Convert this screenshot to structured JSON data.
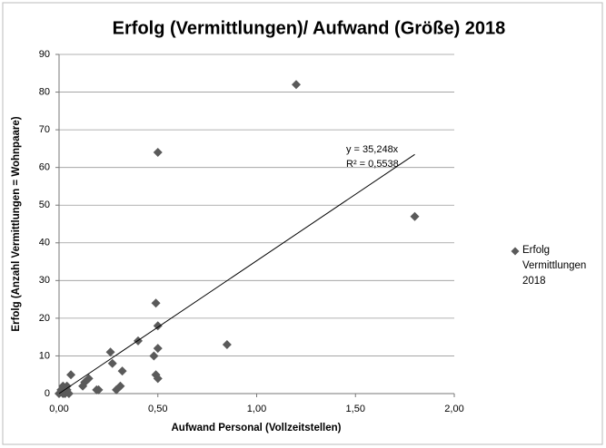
{
  "chart_data": {
    "type": "scatter",
    "title": "Erfolg (Vermittlungen)/ Aufwand (Größe) 2018",
    "x_label": "Aufwand Personal (Vollzeitstellen)",
    "y_label": "Erfolg (Anzahl Vermittlungen = Wohnpaare)",
    "series": [
      {
        "name": "Erfolg Vermittlungen 2018",
        "color": "#5a5a5a",
        "x": [
          0.0,
          0.01,
          0.02,
          0.02,
          0.03,
          0.04,
          0.04,
          0.05,
          0.06,
          0.12,
          0.13,
          0.15,
          0.19,
          0.2,
          0.26,
          0.27,
          0.29,
          0.31,
          0.32,
          0.4,
          0.48,
          0.5,
          0.49,
          0.5,
          0.5,
          0.49,
          0.5,
          0.85,
          1.2,
          1.8
        ],
        "values": [
          0,
          1,
          0,
          2,
          0,
          1,
          2,
          0,
          5,
          2,
          3,
          4,
          1,
          1,
          11,
          8,
          1,
          2,
          6,
          14,
          10,
          64,
          24,
          18,
          12,
          5,
          4,
          13,
          82,
          47
        ]
      }
    ],
    "trendline": {
      "slope": 35.248,
      "label": "y = 35,248x",
      "r2_label": "R² = 0,5538"
    },
    "xlim": [
      0,
      2
    ],
    "ylim": [
      0,
      90
    ],
    "xticks": [
      {
        "value": 0,
        "label": "0,00"
      },
      {
        "value": 0.5,
        "label": "0,50"
      },
      {
        "value": 1,
        "label": "1,00"
      },
      {
        "value": 1.5,
        "label": "1,50"
      },
      {
        "value": 2,
        "label": "2,00"
      }
    ],
    "yticks": [
      0,
      10,
      20,
      30,
      40,
      50,
      60,
      70,
      80,
      90
    ],
    "grid": true,
    "legend": "right"
  }
}
